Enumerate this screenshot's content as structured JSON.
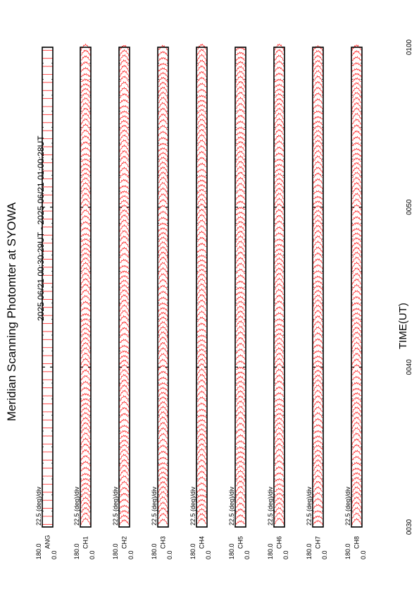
{
  "title": "Meridian Scanning Photomter at SYOWA",
  "time_range": "2025 06/21 00:30:29UT - 2025 06/21 01:00:28UT",
  "xlabel": "TIME(UT)",
  "chart_data": {
    "type": "line",
    "title": "Meridian Scanning Photomter at SYOWA",
    "xlabel": "TIME(UT)",
    "x_ticks": [
      "0030",
      "0040",
      "0050",
      "0100"
    ],
    "xlim": [
      "0030",
      "0100"
    ],
    "panels": [
      {
        "channel": "ANG",
        "scale": "22.5 (deg)/div",
        "ylim": [
          0.0,
          180.0
        ],
        "y_ticks": [
          "0.0",
          "180.0"
        ]
      },
      {
        "channel": "CH1",
        "scale": "22.5 (deg)/div",
        "ylim": [
          0.0,
          180.0
        ],
        "y_ticks": [
          "0.0",
          "180.0"
        ]
      },
      {
        "channel": "CH2",
        "scale": "22.5 (deg)/div",
        "ylim": [
          0.0,
          180.0
        ],
        "y_ticks": [
          "0.0",
          "180.0"
        ]
      },
      {
        "channel": "CH3",
        "scale": "22.5 (deg)/div",
        "ylim": [
          0.0,
          180.0
        ],
        "y_ticks": [
          "0.0",
          "180.0"
        ]
      },
      {
        "channel": "CH4",
        "scale": "22.5 (deg)/div",
        "ylim": [
          0.0,
          180.0
        ],
        "y_ticks": [
          "0.0",
          "180.0"
        ]
      },
      {
        "channel": "CH5",
        "scale": "22.5 (deg)/div",
        "ylim": [
          0.0,
          180.0
        ],
        "y_ticks": [
          "0.0",
          "180.0"
        ]
      },
      {
        "channel": "CH6",
        "scale": "22.5 (deg)/div",
        "ylim": [
          0.0,
          180.0
        ],
        "y_ticks": [
          "0.0",
          "180.0"
        ]
      },
      {
        "channel": "CH7",
        "scale": "22.5 (deg)/div",
        "ylim": [
          0.0,
          180.0
        ],
        "y_ticks": [
          "0.0",
          "180.0"
        ]
      },
      {
        "channel": "CH8",
        "scale": "22.5 (deg)/div",
        "ylim": [
          0.0,
          180.0
        ],
        "y_ticks": [
          "0.0",
          "180.0"
        ]
      }
    ],
    "line_color": "#ff0000",
    "grid": false
  }
}
